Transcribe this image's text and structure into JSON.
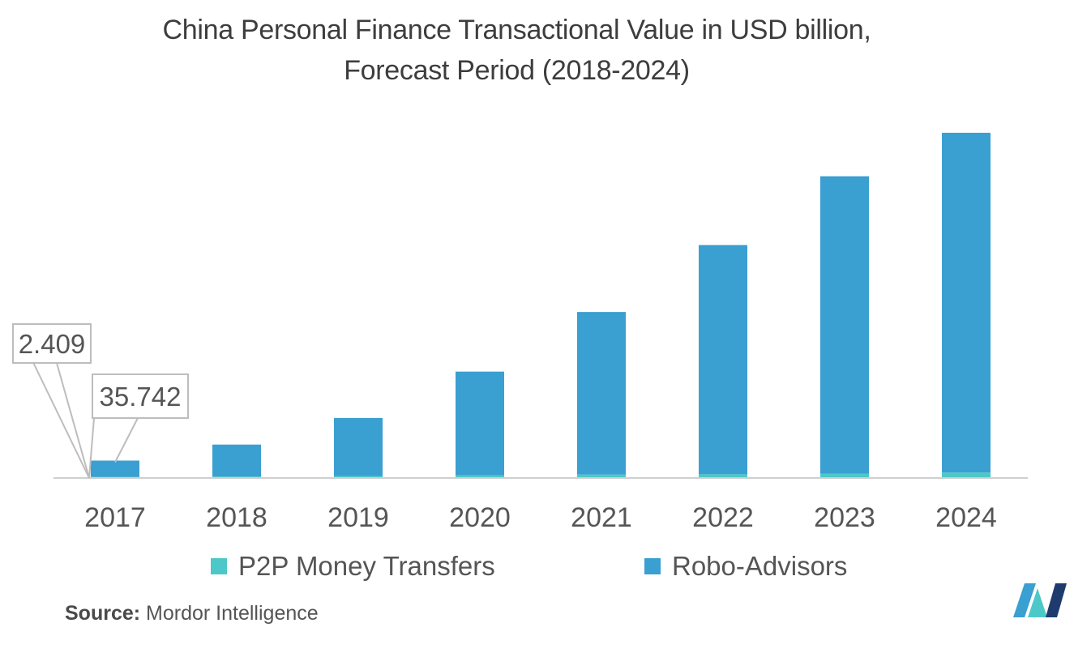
{
  "chart_data": {
    "type": "bar",
    "stacked": true,
    "title": "China Personal Finance Transactional Value in USD billion,",
    "subtitle": "Forecast Period (2018-2024)",
    "categories": [
      "2017",
      "2018",
      "2019",
      "2020",
      "2021",
      "2022",
      "2023",
      "2024"
    ],
    "series": [
      {
        "name": "P2P Money Transfers",
        "color": "#4dc8c8",
        "values": [
          2.409,
          3.2,
          4.5,
          6.0,
          7.5,
          8.2,
          9.8,
          12.0
        ]
      },
      {
        "name": "Robo-Advisors",
        "color": "#3a9fd1",
        "values": [
          35.742,
          70,
          127,
          227,
          356,
          502,
          651,
          744
        ]
      }
    ],
    "ylim": [
      0,
      770
    ],
    "y_axis_visible": false,
    "grid": false,
    "legend_position": "bottom",
    "annotations": [
      {
        "text": "2.409",
        "category": "2017",
        "series": "P2P Money Transfers"
      },
      {
        "text": "35.742",
        "category": "2017",
        "series": "Robo-Advisors"
      }
    ]
  },
  "source": {
    "label": "Source:",
    "text": "Mordor Intelligence"
  },
  "logo": {
    "icon": "mordor-intelligence-logo",
    "colors": [
      "#3a9fd1",
      "#4dc8c8",
      "#1f3b6e"
    ]
  }
}
